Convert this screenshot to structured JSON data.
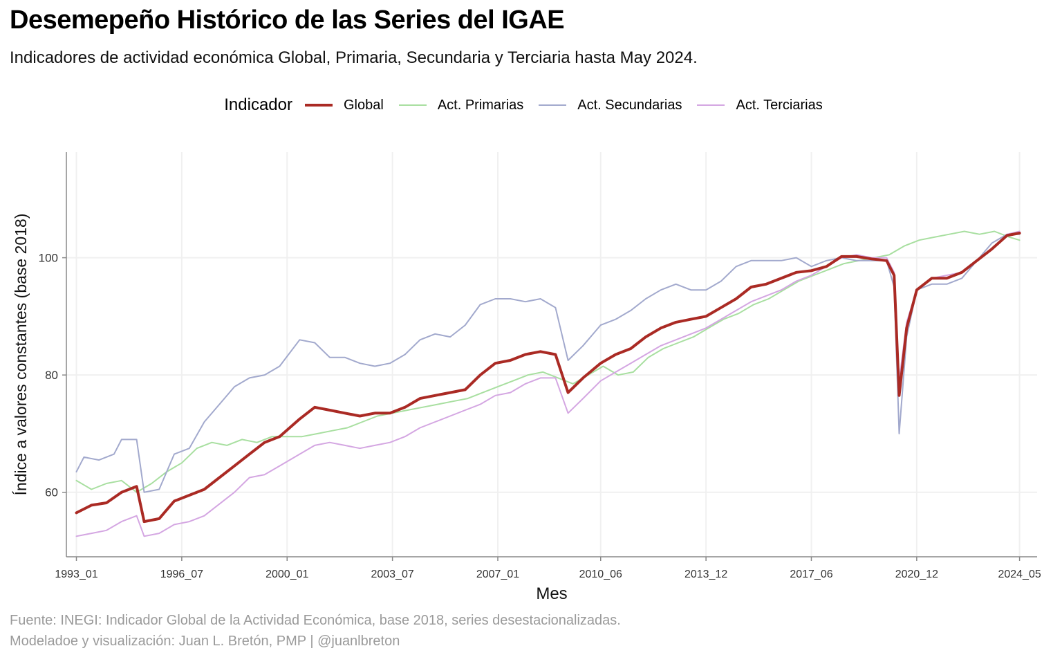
{
  "title": "Desemepeño Histórico de las Series del IGAE",
  "subtitle": "Indicadores de actividad económica Global, Primaria, Secundaria y Terciaria hasta May 2024.",
  "legend": {
    "title": "Indicador",
    "items": [
      {
        "label": "Global",
        "color": "#aa2a24"
      },
      {
        "label": "Act. Primarias",
        "color": "#a8dfa0"
      },
      {
        "label": "Act. Secundarias",
        "color": "#a2a9cd"
      },
      {
        "label": "Act. Terciarias",
        "color": "#d4a6e2"
      }
    ]
  },
  "caption": {
    "line1": "Fuente: INEGI: Indicador Global de la Actividad Económica, base 2018, series desestacionalizadas.",
    "line2": "Modeladoe y visualización: Juan L. Bretón, PMP | @juanlbreton"
  },
  "chart_data": {
    "type": "line",
    "xlabel": "Mes",
    "ylabel": "Índice a valores constantes (base 2018)",
    "x_ticks": [
      "1993_01",
      "1996_07",
      "2000_01",
      "2003_07",
      "2007_01",
      "2010_06",
      "2013_12",
      "2017_06",
      "2020_12",
      "2024_05"
    ],
    "y_ticks": [
      60,
      80,
      100
    ],
    "xlim": [
      "1992_09",
      "2024_12"
    ],
    "ylim": [
      49,
      118
    ],
    "legend_position": "top",
    "grid": true,
    "series": [
      {
        "name": "Global",
        "color": "#aa2a24",
        "points": [
          [
            "1993_01",
            56.5
          ],
          [
            "1993_07",
            57.8
          ],
          [
            "1994_01",
            58.2
          ],
          [
            "1994_07",
            60.0
          ],
          [
            "1995_01",
            61.0
          ],
          [
            "1995_04",
            55.0
          ],
          [
            "1995_10",
            55.5
          ],
          [
            "1996_04",
            58.5
          ],
          [
            "1996_10",
            59.5
          ],
          [
            "1997_04",
            60.5
          ],
          [
            "1997_10",
            62.5
          ],
          [
            "1998_04",
            64.5
          ],
          [
            "1998_10",
            66.5
          ],
          [
            "1999_04",
            68.5
          ],
          [
            "1999_10",
            69.5
          ],
          [
            "2000_06",
            72.5
          ],
          [
            "2000_12",
            74.5
          ],
          [
            "2001_06",
            74.0
          ],
          [
            "2001_12",
            73.5
          ],
          [
            "2002_06",
            73.0
          ],
          [
            "2002_12",
            73.5
          ],
          [
            "2003_06",
            73.5
          ],
          [
            "2003_12",
            74.5
          ],
          [
            "2004_06",
            76.0
          ],
          [
            "2004_12",
            76.5
          ],
          [
            "2005_06",
            77.0
          ],
          [
            "2005_12",
            77.5
          ],
          [
            "2006_06",
            80.0
          ],
          [
            "2006_12",
            82.0
          ],
          [
            "2007_06",
            82.5
          ],
          [
            "2007_12",
            83.5
          ],
          [
            "2008_06",
            84.0
          ],
          [
            "2008_12",
            83.5
          ],
          [
            "2009_05",
            77.0
          ],
          [
            "2009_11",
            79.5
          ],
          [
            "2010_06",
            82.0
          ],
          [
            "2010_12",
            83.5
          ],
          [
            "2011_06",
            84.5
          ],
          [
            "2011_12",
            86.5
          ],
          [
            "2012_06",
            88.0
          ],
          [
            "2012_12",
            89.0
          ],
          [
            "2013_06",
            89.5
          ],
          [
            "2013_12",
            90.0
          ],
          [
            "2014_06",
            91.5
          ],
          [
            "2014_12",
            93.0
          ],
          [
            "2015_06",
            95.0
          ],
          [
            "2015_12",
            95.5
          ],
          [
            "2016_06",
            96.5
          ],
          [
            "2016_12",
            97.5
          ],
          [
            "2017_06",
            97.8
          ],
          [
            "2017_12",
            98.5
          ],
          [
            "2018_06",
            100.2
          ],
          [
            "2018_12",
            100.2
          ],
          [
            "2019_06",
            99.8
          ],
          [
            "2019_12",
            99.5
          ],
          [
            "2020_03",
            97.0
          ],
          [
            "2020_05",
            76.5
          ],
          [
            "2020_08",
            88.0
          ],
          [
            "2020_12",
            94.5
          ],
          [
            "2021_06",
            96.5
          ],
          [
            "2021_12",
            96.5
          ],
          [
            "2022_06",
            97.5
          ],
          [
            "2022_12",
            99.5
          ],
          [
            "2023_06",
            101.5
          ],
          [
            "2023_12",
            103.8
          ],
          [
            "2024_05",
            104.2
          ]
        ]
      },
      {
        "name": "Act. Primarias",
        "color": "#a8dfa0",
        "points": [
          [
            "1993_01",
            62.0
          ],
          [
            "1993_07",
            60.5
          ],
          [
            "1994_01",
            61.5
          ],
          [
            "1994_07",
            62.0
          ],
          [
            "1995_01",
            60.0
          ],
          [
            "1995_07",
            61.5
          ],
          [
            "1996_01",
            63.5
          ],
          [
            "1996_07",
            65.0
          ],
          [
            "1997_01",
            67.5
          ],
          [
            "1997_07",
            68.5
          ],
          [
            "1998_01",
            68.0
          ],
          [
            "1998_07",
            69.0
          ],
          [
            "1999_01",
            68.5
          ],
          [
            "1999_07",
            69.5
          ],
          [
            "2000_01",
            69.5
          ],
          [
            "2000_07",
            69.5
          ],
          [
            "2001_01",
            70.0
          ],
          [
            "2001_07",
            70.5
          ],
          [
            "2002_01",
            71.0
          ],
          [
            "2002_07",
            72.0
          ],
          [
            "2003_01",
            73.0
          ],
          [
            "2003_07",
            73.5
          ],
          [
            "2004_01",
            74.0
          ],
          [
            "2004_07",
            74.5
          ],
          [
            "2005_01",
            75.0
          ],
          [
            "2005_07",
            75.5
          ],
          [
            "2006_01",
            76.0
          ],
          [
            "2006_07",
            77.0
          ],
          [
            "2007_01",
            78.0
          ],
          [
            "2007_07",
            79.0
          ],
          [
            "2008_01",
            80.0
          ],
          [
            "2008_07",
            80.5
          ],
          [
            "2009_01",
            79.5
          ],
          [
            "2009_07",
            78.5
          ],
          [
            "2010_01",
            80.0
          ],
          [
            "2010_07",
            81.5
          ],
          [
            "2011_01",
            80.0
          ],
          [
            "2011_07",
            80.5
          ],
          [
            "2012_01",
            83.0
          ],
          [
            "2012_07",
            84.5
          ],
          [
            "2013_01",
            85.5
          ],
          [
            "2013_07",
            86.5
          ],
          [
            "2014_01",
            88.0
          ],
          [
            "2014_07",
            89.5
          ],
          [
            "2015_01",
            90.5
          ],
          [
            "2015_07",
            92.0
          ],
          [
            "2016_01",
            93.0
          ],
          [
            "2016_07",
            94.5
          ],
          [
            "2017_01",
            96.0
          ],
          [
            "2017_07",
            97.0
          ],
          [
            "2018_01",
            98.0
          ],
          [
            "2018_07",
            99.0
          ],
          [
            "2019_01",
            99.5
          ],
          [
            "2019_07",
            100.0
          ],
          [
            "2020_01",
            100.5
          ],
          [
            "2020_07",
            102.0
          ],
          [
            "2021_01",
            103.0
          ],
          [
            "2021_07",
            103.5
          ],
          [
            "2022_01",
            104.0
          ],
          [
            "2022_07",
            104.5
          ],
          [
            "2023_01",
            104.0
          ],
          [
            "2023_07",
            104.5
          ],
          [
            "2024_01",
            103.5
          ],
          [
            "2024_05",
            103.0
          ]
        ]
      },
      {
        "name": "Act. Secundarias",
        "color": "#a2a9cd",
        "points": [
          [
            "1993_01",
            63.5
          ],
          [
            "1993_04",
            66.0
          ],
          [
            "1993_10",
            65.5
          ],
          [
            "1994_04",
            66.5
          ],
          [
            "1994_07",
            69.0
          ],
          [
            "1995_01",
            69.0
          ],
          [
            "1995_04",
            60.0
          ],
          [
            "1995_10",
            60.5
          ],
          [
            "1996_04",
            66.5
          ],
          [
            "1996_10",
            67.5
          ],
          [
            "1997_04",
            72.0
          ],
          [
            "1997_10",
            75.0
          ],
          [
            "1998_04",
            78.0
          ],
          [
            "1998_10",
            79.5
          ],
          [
            "1999_04",
            80.0
          ],
          [
            "1999_10",
            81.5
          ],
          [
            "2000_06",
            86.0
          ],
          [
            "2000_12",
            85.5
          ],
          [
            "2001_06",
            83.0
          ],
          [
            "2001_12",
            83.0
          ],
          [
            "2002_06",
            82.0
          ],
          [
            "2002_12",
            81.5
          ],
          [
            "2003_06",
            82.0
          ],
          [
            "2003_12",
            83.5
          ],
          [
            "2004_06",
            86.0
          ],
          [
            "2004_12",
            87.0
          ],
          [
            "2005_06",
            86.5
          ],
          [
            "2005_12",
            88.5
          ],
          [
            "2006_06",
            92.0
          ],
          [
            "2006_12",
            93.0
          ],
          [
            "2007_06",
            93.0
          ],
          [
            "2007_12",
            92.5
          ],
          [
            "2008_06",
            93.0
          ],
          [
            "2008_12",
            91.5
          ],
          [
            "2009_05",
            82.5
          ],
          [
            "2009_11",
            85.0
          ],
          [
            "2010_06",
            88.5
          ],
          [
            "2010_12",
            89.5
          ],
          [
            "2011_06",
            91.0
          ],
          [
            "2011_12",
            93.0
          ],
          [
            "2012_06",
            94.5
          ],
          [
            "2012_12",
            95.5
          ],
          [
            "2013_06",
            94.5
          ],
          [
            "2013_12",
            94.5
          ],
          [
            "2014_06",
            96.0
          ],
          [
            "2014_12",
            98.5
          ],
          [
            "2015_06",
            99.5
          ],
          [
            "2015_12",
            99.5
          ],
          [
            "2016_06",
            99.5
          ],
          [
            "2016_12",
            100.0
          ],
          [
            "2017_06",
            98.5
          ],
          [
            "2017_12",
            99.5
          ],
          [
            "2018_06",
            100.0
          ],
          [
            "2018_12",
            99.5
          ],
          [
            "2019_06",
            99.5
          ],
          [
            "2019_12",
            99.5
          ],
          [
            "2020_03",
            95.0
          ],
          [
            "2020_05",
            70.0
          ],
          [
            "2020_08",
            86.5
          ],
          [
            "2020_12",
            94.5
          ],
          [
            "2021_06",
            95.5
          ],
          [
            "2021_12",
            95.5
          ],
          [
            "2022_06",
            96.5
          ],
          [
            "2022_12",
            99.5
          ],
          [
            "2023_06",
            102.5
          ],
          [
            "2023_12",
            104.0
          ],
          [
            "2024_05",
            104.0
          ]
        ]
      },
      {
        "name": "Act. Terciarias",
        "color": "#d4a6e2",
        "points": [
          [
            "1993_01",
            52.5
          ],
          [
            "1993_07",
            53.0
          ],
          [
            "1994_01",
            53.5
          ],
          [
            "1994_07",
            55.0
          ],
          [
            "1995_01",
            56.0
          ],
          [
            "1995_04",
            52.5
          ],
          [
            "1995_10",
            53.0
          ],
          [
            "1996_04",
            54.5
          ],
          [
            "1996_10",
            55.0
          ],
          [
            "1997_04",
            56.0
          ],
          [
            "1997_10",
            58.0
          ],
          [
            "1998_04",
            60.0
          ],
          [
            "1998_10",
            62.5
          ],
          [
            "1999_04",
            63.0
          ],
          [
            "1999_10",
            64.5
          ],
          [
            "2000_06",
            66.5
          ],
          [
            "2000_12",
            68.0
          ],
          [
            "2001_06",
            68.5
          ],
          [
            "2001_12",
            68.0
          ],
          [
            "2002_06",
            67.5
          ],
          [
            "2002_12",
            68.0
          ],
          [
            "2003_06",
            68.5
          ],
          [
            "2003_12",
            69.5
          ],
          [
            "2004_06",
            71.0
          ],
          [
            "2004_12",
            72.0
          ],
          [
            "2005_06",
            73.0
          ],
          [
            "2005_12",
            74.0
          ],
          [
            "2006_06",
            75.0
          ],
          [
            "2006_12",
            76.5
          ],
          [
            "2007_06",
            77.0
          ],
          [
            "2007_12",
            78.5
          ],
          [
            "2008_06",
            79.5
          ],
          [
            "2008_12",
            79.5
          ],
          [
            "2009_05",
            73.5
          ],
          [
            "2009_11",
            76.0
          ],
          [
            "2010_06",
            79.0
          ],
          [
            "2010_12",
            80.5
          ],
          [
            "2011_06",
            82.0
          ],
          [
            "2011_12",
            83.5
          ],
          [
            "2012_06",
            85.0
          ],
          [
            "2012_12",
            86.0
          ],
          [
            "2013_06",
            87.0
          ],
          [
            "2013_12",
            88.0
          ],
          [
            "2014_06",
            89.5
          ],
          [
            "2014_12",
            91.0
          ],
          [
            "2015_06",
            92.5
          ],
          [
            "2015_12",
            93.5
          ],
          [
            "2016_06",
            94.5
          ],
          [
            "2016_12",
            96.0
          ],
          [
            "2017_06",
            97.0
          ],
          [
            "2017_12",
            98.5
          ],
          [
            "2018_06",
            100.0
          ],
          [
            "2018_12",
            100.5
          ],
          [
            "2019_06",
            100.0
          ],
          [
            "2019_12",
            100.0
          ],
          [
            "2020_03",
            97.5
          ],
          [
            "2020_05",
            79.0
          ],
          [
            "2020_08",
            89.0
          ],
          [
            "2020_12",
            94.5
          ],
          [
            "2021_06",
            96.5
          ],
          [
            "2021_12",
            97.0
          ],
          [
            "2022_06",
            97.5
          ],
          [
            "2022_12",
            99.5
          ],
          [
            "2023_06",
            101.5
          ],
          [
            "2023_12",
            104.0
          ],
          [
            "2024_05",
            104.5
          ]
        ]
      }
    ]
  }
}
